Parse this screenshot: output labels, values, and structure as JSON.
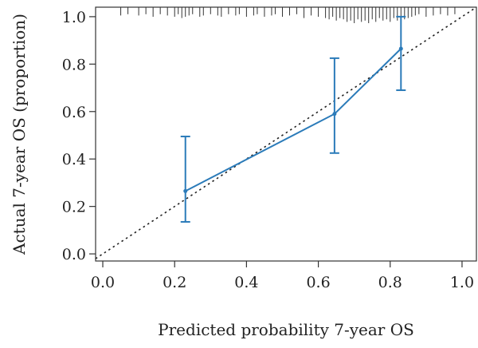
{
  "chart_data": {
    "type": "line",
    "title": "",
    "xlabel": "Predicted probability 7-year OS",
    "ylabel": "Actual 7-year OS (proportion)",
    "xlim": [
      -0.02,
      1.04
    ],
    "ylim": [
      -0.03,
      1.04
    ],
    "x_ticks": [
      0.0,
      0.2,
      0.4,
      0.6,
      0.8,
      1.0
    ],
    "x_tick_labels": [
      "0.0",
      "0.2",
      "0.4",
      "0.6",
      "0.8",
      "1.0"
    ],
    "y_ticks": [
      0.0,
      0.2,
      0.4,
      0.6,
      0.8,
      1.0
    ],
    "y_tick_labels": [
      "0.0",
      "0.2",
      "0.4",
      "0.6",
      "0.8",
      "1.0"
    ],
    "grid": false,
    "legend": "none",
    "series": [
      {
        "style": "solid-line-with-error-bars",
        "color": "#2b7bb9",
        "points": [
          {
            "x": 0.23,
            "y": 0.265,
            "lower": 0.135,
            "upper": 0.495
          },
          {
            "x": 0.645,
            "y": 0.59,
            "lower": 0.425,
            "upper": 0.825
          },
          {
            "x": 0.83,
            "y": 0.865,
            "lower": 0.69,
            "upper": 1.0
          }
        ]
      }
    ],
    "reference_line": {
      "style": "dotted",
      "color": "#222222",
      "from": [
        -0.02,
        -0.02
      ],
      "to": [
        1.04,
        1.04
      ]
    },
    "rug": {
      "position": "top",
      "values": [
        0.05,
        0.07,
        0.1,
        0.12,
        0.14,
        0.16,
        0.18,
        0.2,
        0.21,
        0.22,
        0.23,
        0.24,
        0.25,
        0.27,
        0.28,
        0.3,
        0.32,
        0.33,
        0.35,
        0.37,
        0.38,
        0.4,
        0.42,
        0.43,
        0.45,
        0.47,
        0.48,
        0.5,
        0.52,
        0.54,
        0.56,
        0.58,
        0.6,
        0.62,
        0.63,
        0.64,
        0.65,
        0.66,
        0.67,
        0.68,
        0.69,
        0.7,
        0.71,
        0.72,
        0.73,
        0.74,
        0.75,
        0.76,
        0.77,
        0.78,
        0.79,
        0.8,
        0.81,
        0.82,
        0.83,
        0.84,
        0.85,
        0.86,
        0.87,
        0.88,
        0.9,
        0.92,
        0.94,
        0.96,
        0.98
      ],
      "lengths": [
        0.4,
        0.3,
        0.4,
        0.3,
        0.5,
        0.3,
        0.4,
        0.5,
        0.3,
        0.6,
        0.5,
        0.4,
        0.3,
        0.5,
        0.4,
        0.3,
        0.4,
        0.5,
        0.3,
        0.4,
        0.3,
        0.5,
        0.4,
        0.3,
        0.5,
        0.4,
        0.3,
        0.5,
        0.4,
        0.3,
        0.6,
        0.4,
        0.5,
        0.6,
        0.7,
        0.5,
        0.8,
        0.6,
        0.7,
        0.9,
        0.8,
        1.0,
        0.7,
        0.9,
        0.8,
        1.0,
        0.7,
        0.9,
        0.6,
        0.8,
        0.7,
        0.9,
        0.6,
        0.8,
        1.0,
        0.7,
        0.6,
        0.5,
        0.4,
        0.3,
        0.5,
        0.4,
        0.3,
        0.4,
        0.3
      ]
    }
  }
}
